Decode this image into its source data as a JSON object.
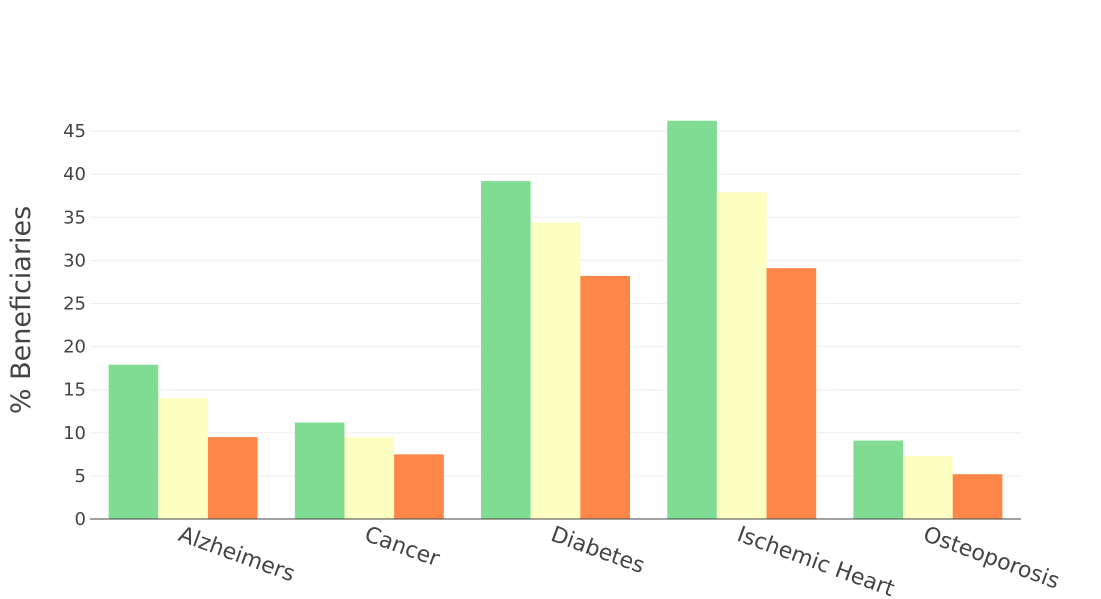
{
  "chart_data": {
    "type": "bar",
    "title": "",
    "xlabel": "",
    "ylabel": "% Beneficiaries",
    "categories": [
      "Alzheimers",
      "Cancer",
      "Diabetes",
      "Ischemic Heart",
      "Osteoporosis"
    ],
    "series": [
      {
        "color": "#7fdc92",
        "values": [
          17.9,
          11.2,
          39.2,
          46.2,
          9.1
        ]
      },
      {
        "color": "#fdffc0",
        "values": [
          14.0,
          9.5,
          34.4,
          37.9,
          7.3
        ]
      },
      {
        "color": "#ff8649",
        "values": [
          9.5,
          7.5,
          28.2,
          29.1,
          5.2
        ]
      }
    ],
    "yticks": [
      0,
      5,
      10,
      15,
      20,
      25,
      30,
      35,
      40,
      45
    ],
    "ylim": [
      0,
      47
    ],
    "grid": true,
    "legend": "none"
  }
}
